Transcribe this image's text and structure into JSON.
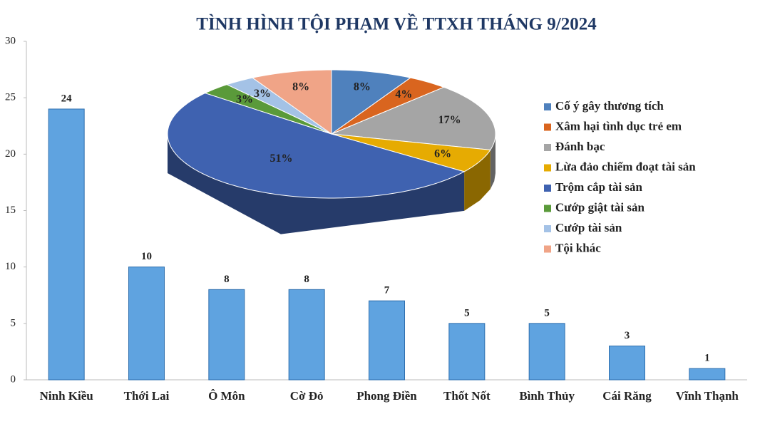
{
  "chart_data": [
    {
      "type": "bar",
      "title": "TÌNH HÌNH TỘI PHẠM VỀ TTXH THÁNG 9/2024",
      "categories": [
        "Ninh Kiều",
        "Thới Lai",
        "Ô Môn",
        "Cờ Đỏ",
        "Phong Điền",
        "Thốt Nốt",
        "Bình Thủy",
        "Cái Răng",
        "Vĩnh Thạnh"
      ],
      "values": [
        24,
        10,
        8,
        8,
        7,
        5,
        5,
        3,
        1
      ],
      "color": "#5fa3e0",
      "ylim": [
        0,
        30
      ],
      "yticks": [
        0,
        5,
        10,
        15,
        20,
        25,
        30
      ]
    },
    {
      "type": "pie",
      "categories": [
        "Cố ý gây thương tích",
        "Xâm hại tình dục trẻ em",
        "Đánh bạc",
        "Lừa đảo chiếm đoạt tài sản",
        "Trộm cắp tài sản",
        "Cướp giật tài sản",
        "Cướp tài sản",
        "Tội khác"
      ],
      "values": [
        8,
        4,
        17,
        6,
        51,
        3,
        3,
        8
      ],
      "value_labels": [
        "8%",
        "4%",
        "17%",
        "6%",
        "51%",
        "3%",
        "3%",
        "8%"
      ],
      "colors": [
        "#4f81bd",
        "#d9651f",
        "#a5a5a5",
        "#e6ab02",
        "#3f62b0",
        "#5a9a3a",
        "#a4c2e6",
        "#f0a487"
      ],
      "legend": "right"
    }
  ]
}
